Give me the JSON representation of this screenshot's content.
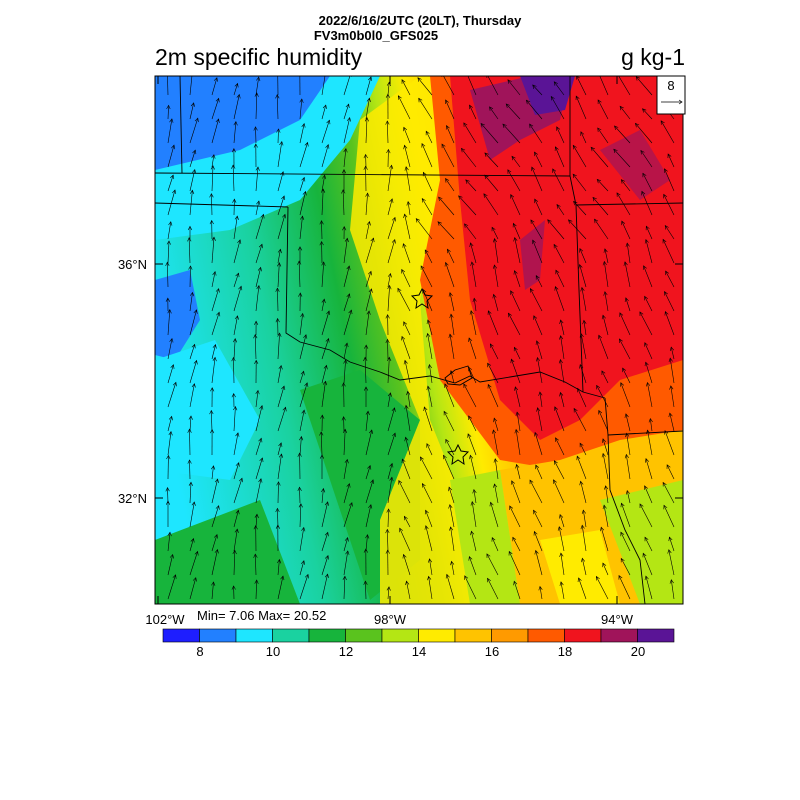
{
  "header": {
    "line1": "2022/6/16/2UTC (20LT), Thursday",
    "line2": "FV3m0b0l0_GFS025"
  },
  "variable": {
    "name": "2m specific humidity",
    "units": "g kg-1"
  },
  "reference_vector": {
    "label": "8"
  },
  "axes": {
    "lat_labels": [
      "36°N",
      "32°N"
    ],
    "lon_labels": [
      "102°W",
      "98°W",
      "94°W"
    ]
  },
  "stats": {
    "text": "Min= 7.06 Max= 20.52"
  },
  "colorbar": {
    "colors": [
      "#1e1eff",
      "#2280ff",
      "#1ee6ff",
      "#1ad2a0",
      "#17b43c",
      "#5ac31e",
      "#b4e614",
      "#ffeb00",
      "#ffc300",
      "#ff9a00",
      "#ff5a00",
      "#f0141e",
      "#a0145a",
      "#5a1496"
    ],
    "labels": [
      "8",
      "10",
      "12",
      "14",
      "16",
      "18",
      "20"
    ]
  },
  "markers": {
    "icon": "star-icon",
    "count": 2
  }
}
